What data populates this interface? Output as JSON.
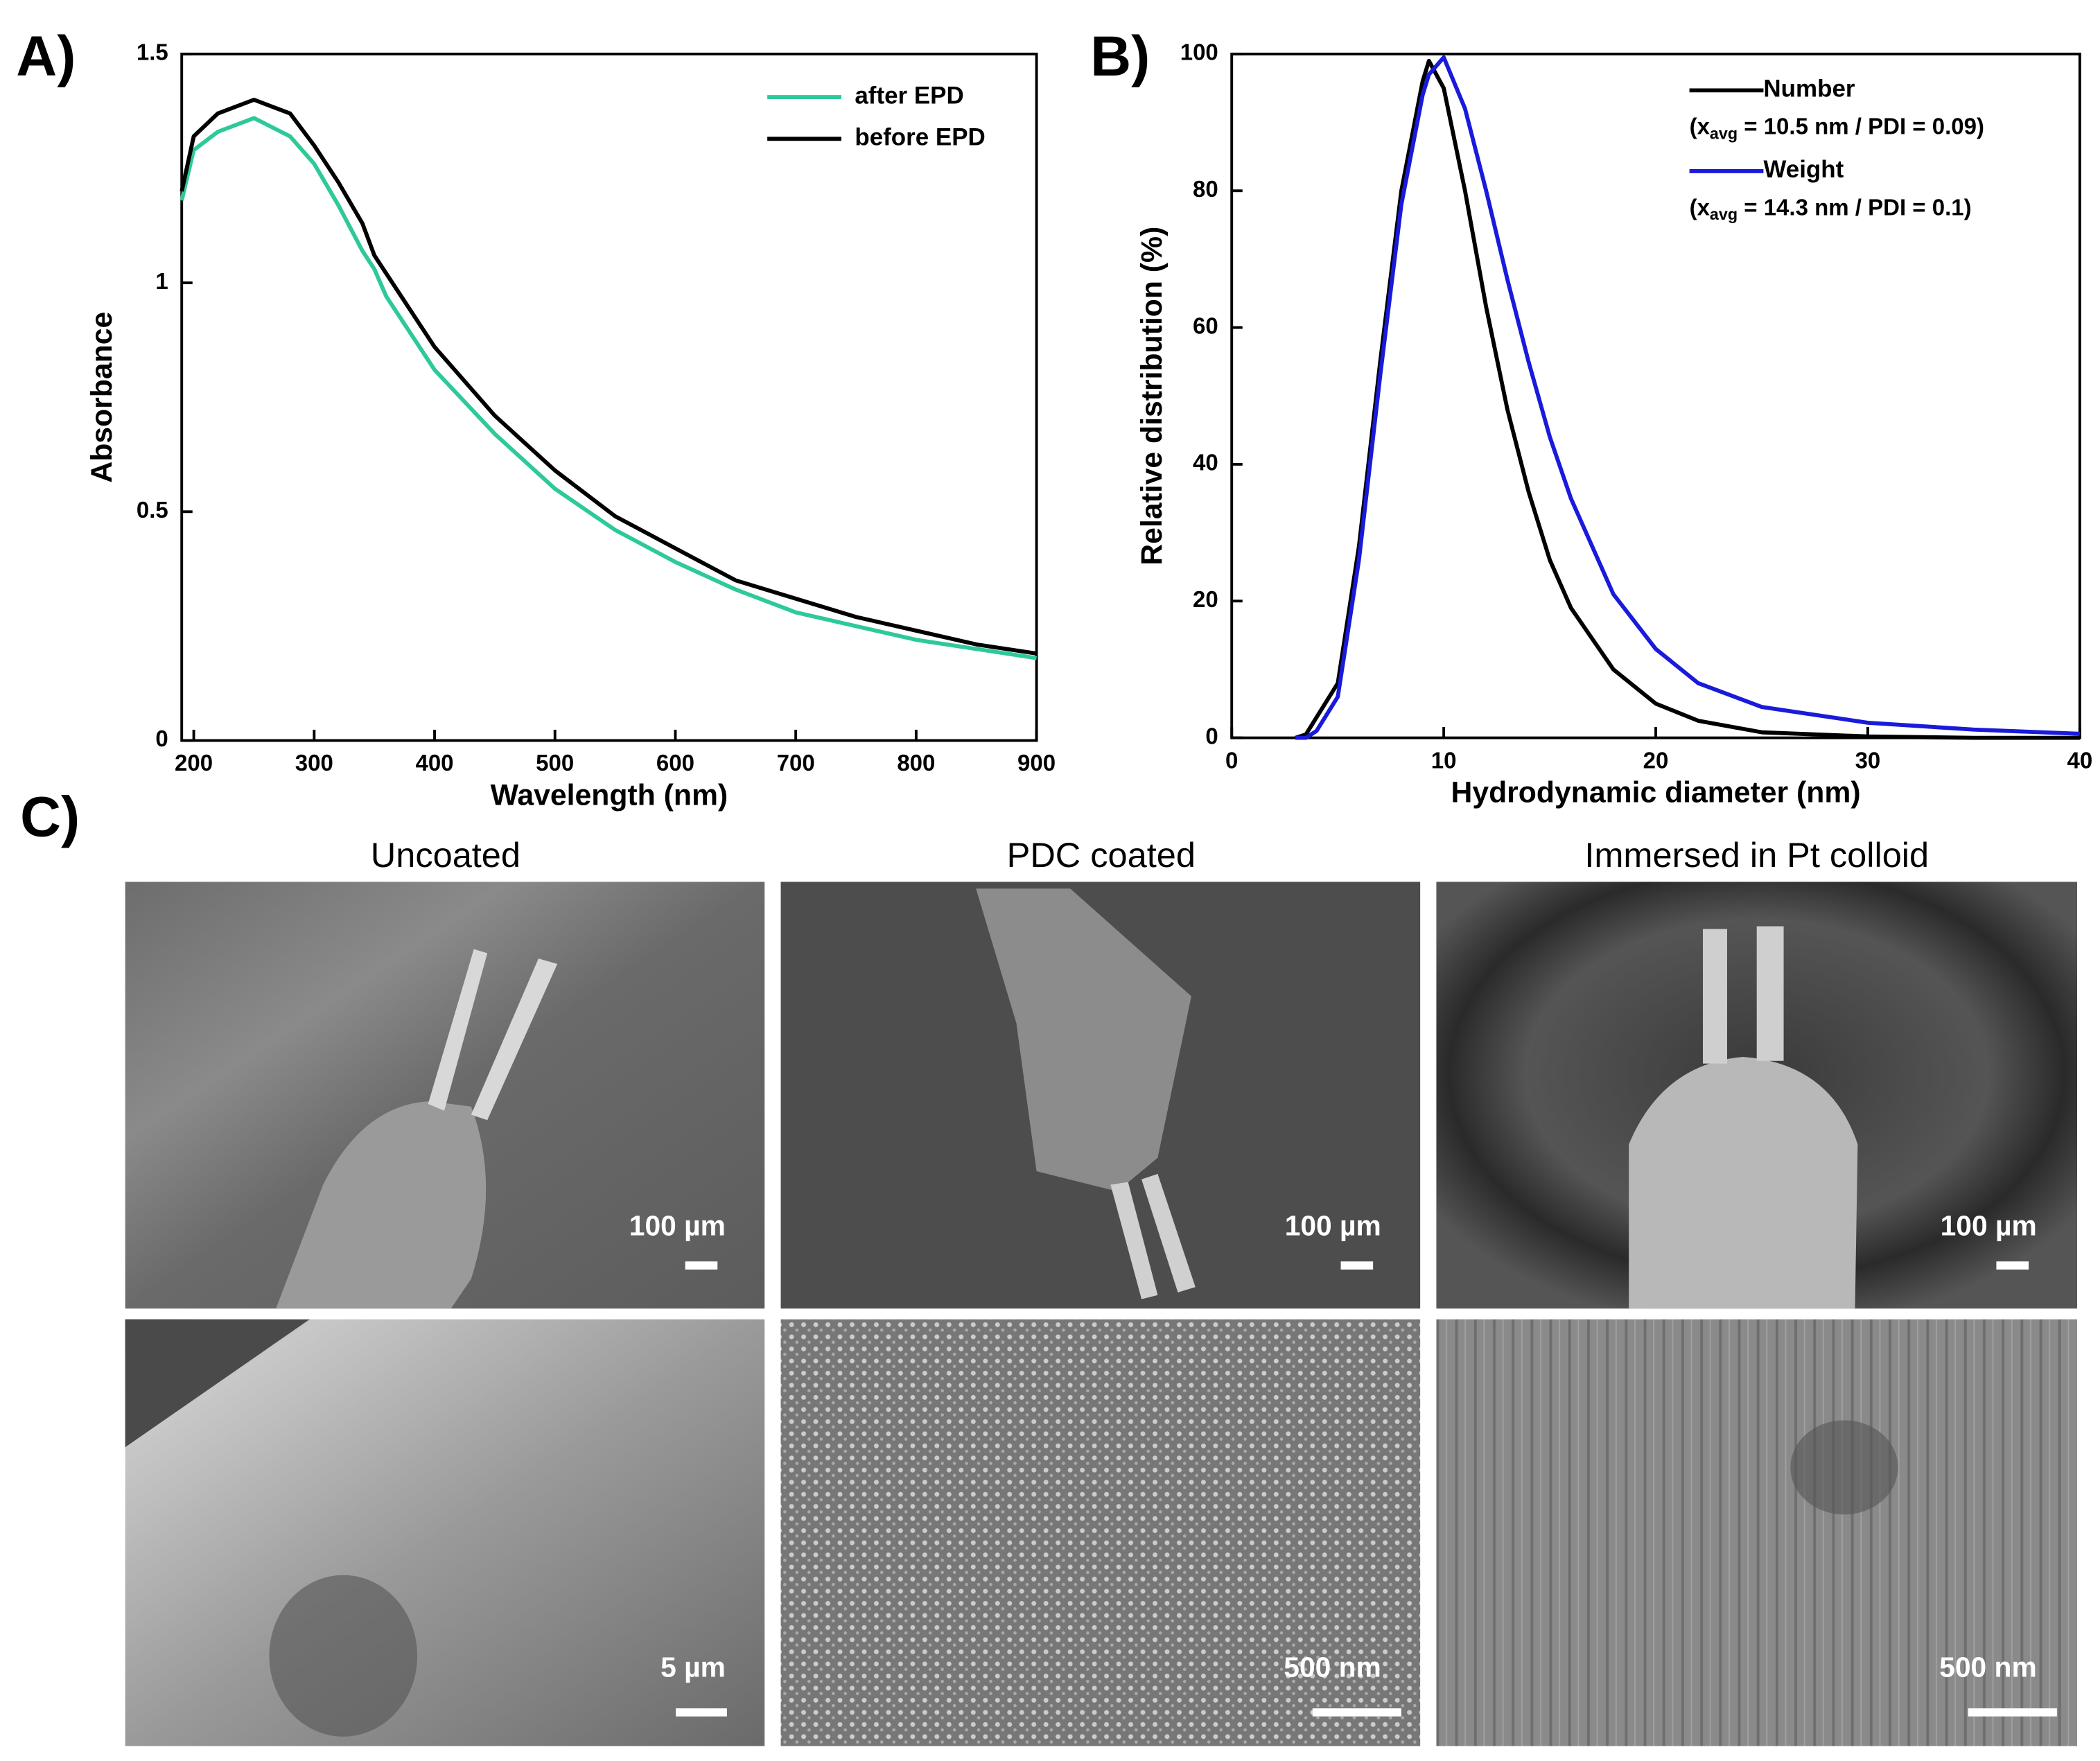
{
  "chart_data": [
    {
      "type": "line",
      "panel_label": "A)",
      "x_label": "Wavelength (nm)",
      "y_label": "Absorbance",
      "x": [
        190,
        200,
        220,
        250,
        280,
        300,
        320,
        340,
        350,
        360,
        380,
        400,
        450,
        500,
        550,
        600,
        650,
        700,
        750,
        800,
        850,
        900
      ],
      "series": [
        {
          "name": "after EPD",
          "color": "#2ec99a",
          "values": [
            1.18,
            1.29,
            1.33,
            1.36,
            1.32,
            1.26,
            1.17,
            1.07,
            1.03,
            0.97,
            0.89,
            0.81,
            0.67,
            0.55,
            0.46,
            0.39,
            0.33,
            0.28,
            0.25,
            0.22,
            0.2,
            0.18
          ]
        },
        {
          "name": "before EPD",
          "color": "#000000",
          "values": [
            1.2,
            1.32,
            1.37,
            1.4,
            1.37,
            1.3,
            1.22,
            1.13,
            1.06,
            1.02,
            0.94,
            0.86,
            0.71,
            0.59,
            0.49,
            0.42,
            0.35,
            0.31,
            0.27,
            0.24,
            0.21,
            0.19
          ]
        }
      ],
      "xlim": [
        190,
        900
      ],
      "xticks": [
        200,
        300,
        400,
        500,
        600,
        700,
        800,
        900
      ],
      "ylim": [
        0,
        1.5
      ],
      "yticks": [
        0,
        0.5,
        1,
        1.5
      ],
      "legend": "upper right"
    },
    {
      "type": "line",
      "panel_label": "B)",
      "x_label": "Hydrodynamic diameter (nm)",
      "y_label": "Relative distribution (%)",
      "x": [
        3,
        3.5,
        4,
        5,
        6,
        7,
        8,
        9,
        9.3,
        10,
        11,
        12,
        13,
        14,
        15,
        16,
        18,
        20,
        22,
        25,
        30,
        35,
        40
      ],
      "series": [
        {
          "name": "Number",
          "color": "#000000",
          "values": [
            0,
            0.5,
            3,
            8,
            28,
            55,
            80,
            96,
            99,
            95,
            80,
            63,
            48,
            36,
            26,
            19,
            10,
            5,
            2.5,
            0.8,
            0.2,
            0,
            0
          ],
          "note": {
            "prefix": "(x",
            "sub": "avg",
            "suffix": " = 10.5 nm / PDI = 0.09)"
          }
        },
        {
          "name": "Weight",
          "color": "#1a1adb",
          "values": [
            0,
            0,
            1,
            6,
            26,
            53,
            78,
            94,
            97,
            99.5,
            92,
            80,
            67,
            55,
            44,
            35,
            21,
            13,
            8,
            4.5,
            2.2,
            1.2,
            0.6
          ],
          "note": {
            "prefix": "(x",
            "sub": "avg",
            "suffix": " = 14.3 nm / PDI = 0.1)"
          }
        }
      ],
      "xlim": [
        0,
        40
      ],
      "xticks": [
        0,
        10,
        20,
        30,
        40
      ],
      "ylim": [
        0,
        100
      ],
      "yticks": [
        0,
        20,
        40,
        60,
        80,
        100
      ],
      "legend": "upper right"
    }
  ],
  "panel_c": {
    "label": "C)",
    "columns": [
      {
        "title": "Uncoated",
        "scale_bars": [
          "100 µm",
          "5 µm"
        ]
      },
      {
        "title": "PDC coated",
        "scale_bars": [
          "100 µm",
          "500 nm"
        ]
      },
      {
        "title": "Immersed in Pt colloid",
        "scale_bars": [
          "100 µm",
          "500 nm"
        ]
      }
    ]
  }
}
